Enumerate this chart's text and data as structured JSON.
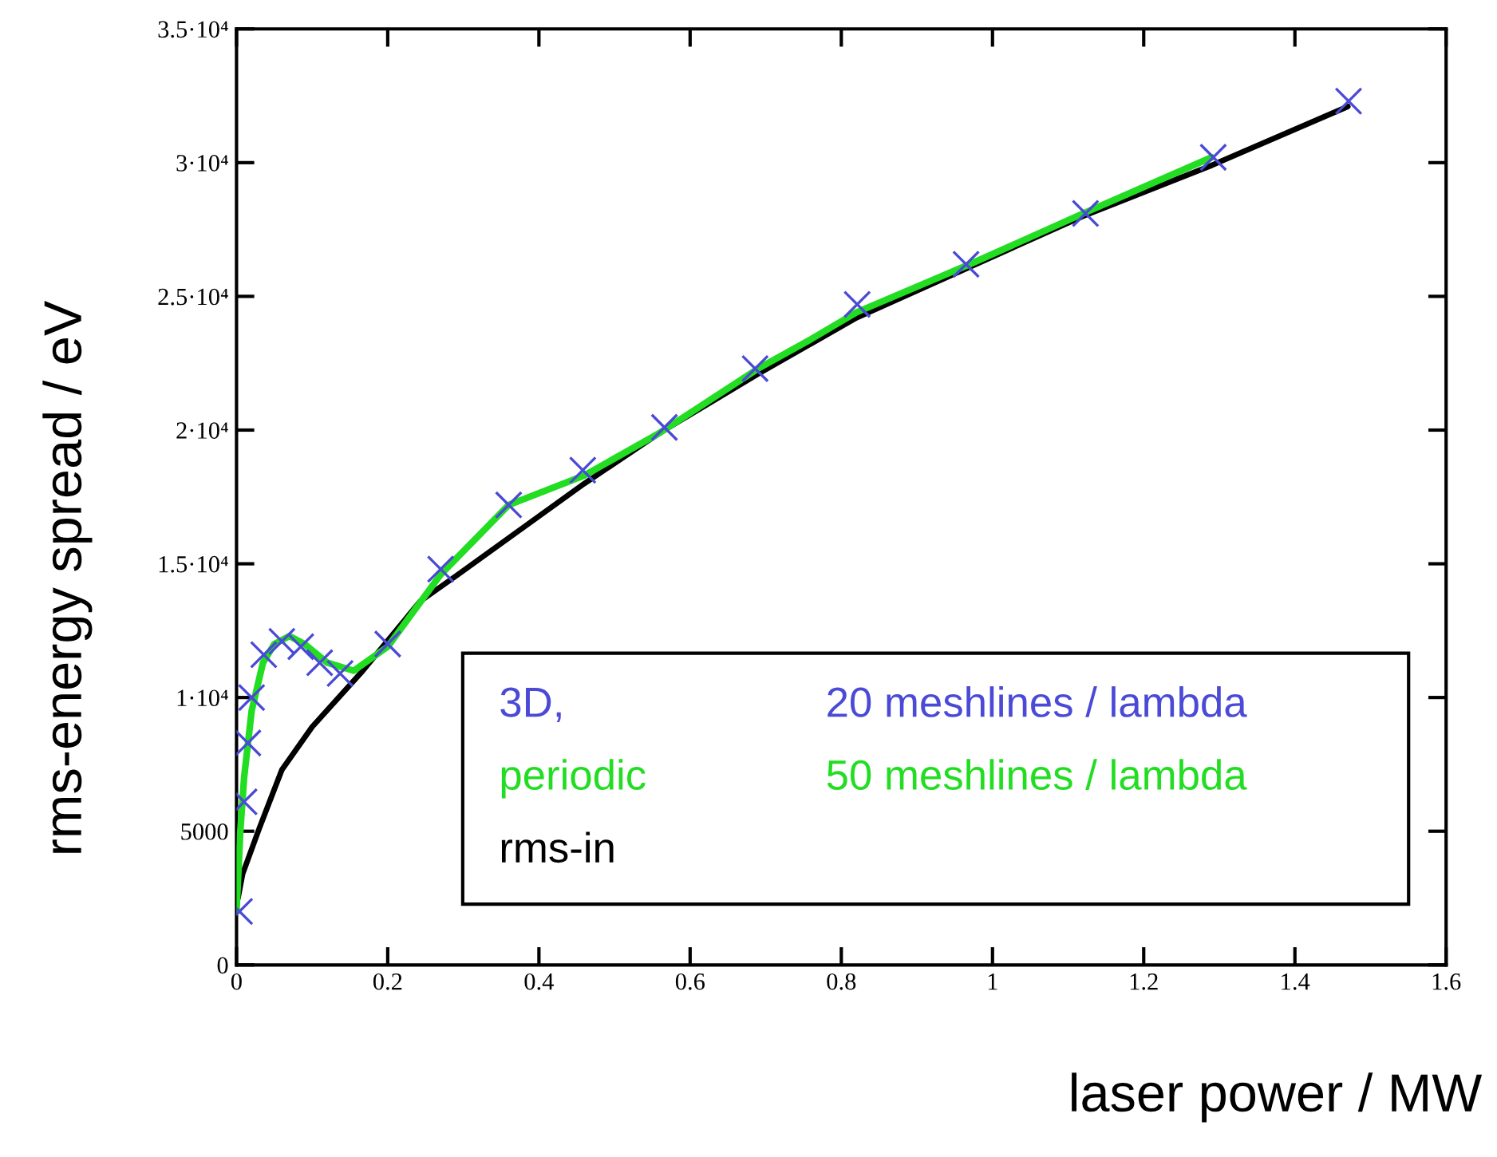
{
  "chart_data": {
    "type": "line",
    "xlabel": "laser power / MW",
    "ylabel": "rms-energy spread / eV",
    "xlim": [
      0,
      1.6
    ],
    "xticks": [
      0,
      0.2,
      0.4,
      0.6,
      0.8,
      1,
      1.2,
      1.4,
      1.6
    ],
    "ylim": [
      0,
      35000
    ],
    "yticks": [
      0,
      5000,
      {
        "value": 10000,
        "label": "1·10⁴"
      },
      {
        "value": 15000,
        "label": "1.5·10⁴"
      },
      {
        "value": 20000,
        "label": "2·10⁴"
      },
      {
        "value": 25000,
        "label": "2.5·10⁴"
      },
      {
        "value": 30000,
        "label": "3·10⁴"
      },
      {
        "value": 35000,
        "label": "3.5·10⁴"
      }
    ],
    "grid": false,
    "legend": "bottom right",
    "annotations": [
      "3D,",
      "periodic"
    ],
    "series": [
      {
        "name": "20 meshlines / lambda",
        "type": "scatter",
        "marker": "cross",
        "color": "#4a4ad6",
        "x": [
          0.004,
          0.01,
          0.015,
          0.02,
          0.036,
          0.06,
          0.085,
          0.11,
          0.137,
          0.2,
          0.27,
          0.36,
          0.458,
          0.566,
          0.686,
          0.821,
          0.965,
          1.123,
          1.292,
          1.471
        ],
        "values": [
          2000,
          6100,
          8300,
          10000,
          11600,
          12100,
          11900,
          11300,
          10900,
          12000,
          14800,
          17200,
          18500,
          20100,
          22300,
          24700,
          26200,
          28100,
          30200,
          32300
        ]
      },
      {
        "name": "50 meshlines / lambda",
        "color": "#22dd22",
        "x": [
          0,
          0.005,
          0.01,
          0.02,
          0.035,
          0.05,
          0.07,
          0.09,
          0.12,
          0.155,
          0.2,
          0.27,
          0.36,
          0.46,
          0.56,
          0.69,
          0.76,
          0.82,
          0.97,
          1.12,
          1.29
        ],
        "values": [
          2000,
          5000,
          7000,
          9500,
          11300,
          12000,
          12300,
          12000,
          11300,
          11000,
          11900,
          14600,
          17200,
          18300,
          19900,
          22300,
          23400,
          24400,
          26200,
          28100,
          30200
        ]
      },
      {
        "name": "rms-in",
        "color": "#000000",
        "x": [
          0.002,
          0.008,
          0.03,
          0.06,
          0.1,
          0.167,
          0.243,
          0.293,
          0.46,
          0.56,
          0.69,
          0.82,
          0.97,
          1.12,
          1.29,
          1.47
        ],
        "values": [
          2500,
          3400,
          5100,
          7300,
          8900,
          11000,
          13600,
          14600,
          18000,
          19900,
          22100,
          24200,
          26100,
          28000,
          29900,
          32100
        ]
      }
    ]
  }
}
